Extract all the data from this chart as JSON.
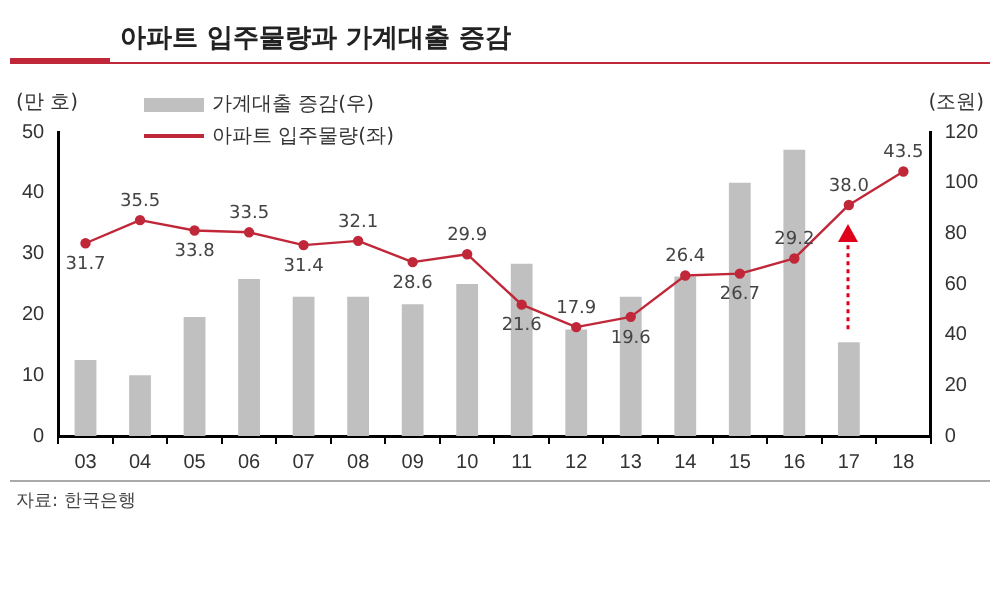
{
  "chart_data": {
    "type": "bar",
    "title": "아파트 입주물량과 가계대출 증감",
    "ylabel": "(만 호)",
    "y2label": "(조원)",
    "categories": [
      "03",
      "04",
      "05",
      "06",
      "07",
      "08",
      "09",
      "10",
      "11",
      "12",
      "13",
      "14",
      "15",
      "16",
      "17",
      "18"
    ],
    "series": [
      {
        "name": "가계대출 증감(우)",
        "axis": "y2",
        "color": "#c0c0c0",
        "values": [
          30,
          24,
          47,
          62,
          55,
          55,
          52,
          60,
          68,
          42,
          55,
          63,
          100,
          113,
          37,
          null
        ]
      },
      {
        "name": "아파트 입주물량(좌)",
        "type": "line",
        "axis": "y",
        "color": "#c0283a",
        "marker": "circle",
        "values": [
          31.7,
          35.5,
          33.8,
          33.5,
          31.4,
          32.1,
          28.6,
          29.9,
          21.6,
          17.9,
          19.6,
          26.4,
          26.7,
          29.2,
          38.0,
          43.5
        ],
        "value_labels": [
          "31.7",
          "35.5",
          "33.8",
          "33.5",
          "31.4",
          "32.1",
          "28.6",
          "29.9",
          "21.6",
          "17.9",
          "19.6",
          "26.4",
          "26.7",
          "29.2",
          "38.0",
          "43.5"
        ]
      }
    ],
    "ylim": [
      0,
      50
    ],
    "yticks": [
      0,
      10,
      20,
      30,
      40,
      50
    ],
    "y2lim": [
      0,
      120
    ],
    "y2ticks": [
      0,
      20,
      40,
      60,
      80,
      100,
      120
    ],
    "grid": false,
    "legend": "top left",
    "annotations": [
      "자료: 한국은행"
    ]
  }
}
